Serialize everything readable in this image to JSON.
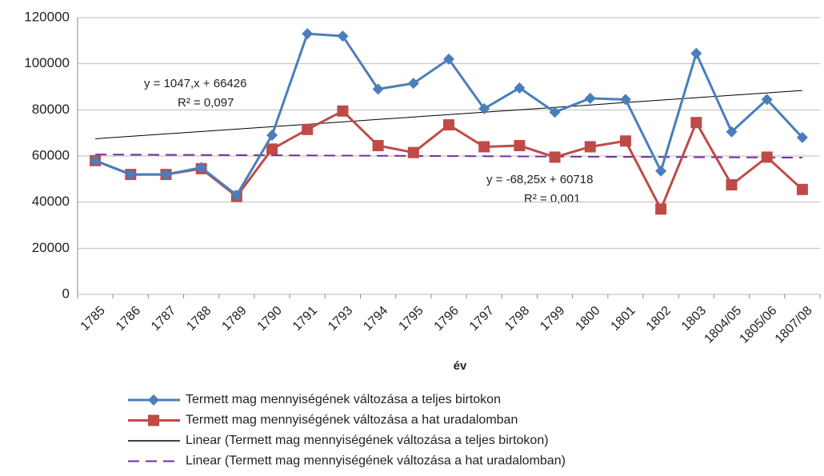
{
  "chart_data": {
    "type": "line",
    "x_label": "év",
    "categories": [
      "1785",
      "1786",
      "1787",
      "1788",
      "1789",
      "1790",
      "1791",
      "1793",
      "1794",
      "1795",
      "1796",
      "1797",
      "1798",
      "1799",
      "1800",
      "1801",
      "1802",
      "1803",
      "1804/05",
      "1805/06",
      "1807/08"
    ],
    "series": [
      {
        "name": "Termett mag mennyiségének változása a teljes birtokon",
        "color": "#4a7ebb",
        "marker": "diamond",
        "dash": false,
        "values": [
          58000,
          52000,
          52000,
          55000,
          43000,
          69000,
          113000,
          112000,
          89000,
          91500,
          102000,
          80500,
          89500,
          79000,
          85000,
          84500,
          53500,
          104500,
          70500,
          84500,
          68000
        ]
      },
      {
        "name": "Termett mag mennyiségének változása a hat uradalomban",
        "color": "#be4b48",
        "marker": "square",
        "dash": false,
        "values": [
          58000,
          52000,
          52000,
          54500,
          42500,
          63000,
          71500,
          79500,
          64500,
          61500,
          73500,
          64000,
          64500,
          59500,
          64000,
          66500,
          37000,
          74500,
          47500,
          59500,
          45500
        ]
      },
      {
        "name": "Linear (Termett mag mennyiségének változása a teljes birtokon)",
        "color": "#000000",
        "marker": "none",
        "dash": false,
        "values": [
          67473,
          68520,
          69567,
          70614,
          71661,
          72708,
          73755,
          74802,
          75849,
          76896,
          77943,
          78990,
          80037,
          81084,
          82131,
          83178,
          84225,
          85272,
          86319,
          87366,
          88413
        ]
      },
      {
        "name": "Linear (Termett mag mennyiségének változása a hat uradalomban)",
        "color": "#7030a0",
        "marker": "none",
        "dash": true,
        "values": [
          60650,
          60581,
          60513,
          60445,
          60377,
          60309,
          60240,
          60172,
          60104,
          60036,
          59968,
          59899,
          59831,
          59763,
          59695,
          59627,
          59558,
          59490,
          59422,
          59354,
          59285
        ]
      }
    ],
    "annotations": [
      "y = 1047,x + 66426",
      "R² = 0,097",
      "y = -68,25x + 60718",
      "R² = 0,001"
    ],
    "ylim": [
      0,
      120000
    ],
    "yticks": [
      0,
      20000,
      40000,
      60000,
      80000,
      100000,
      120000
    ],
    "grid": true
  }
}
